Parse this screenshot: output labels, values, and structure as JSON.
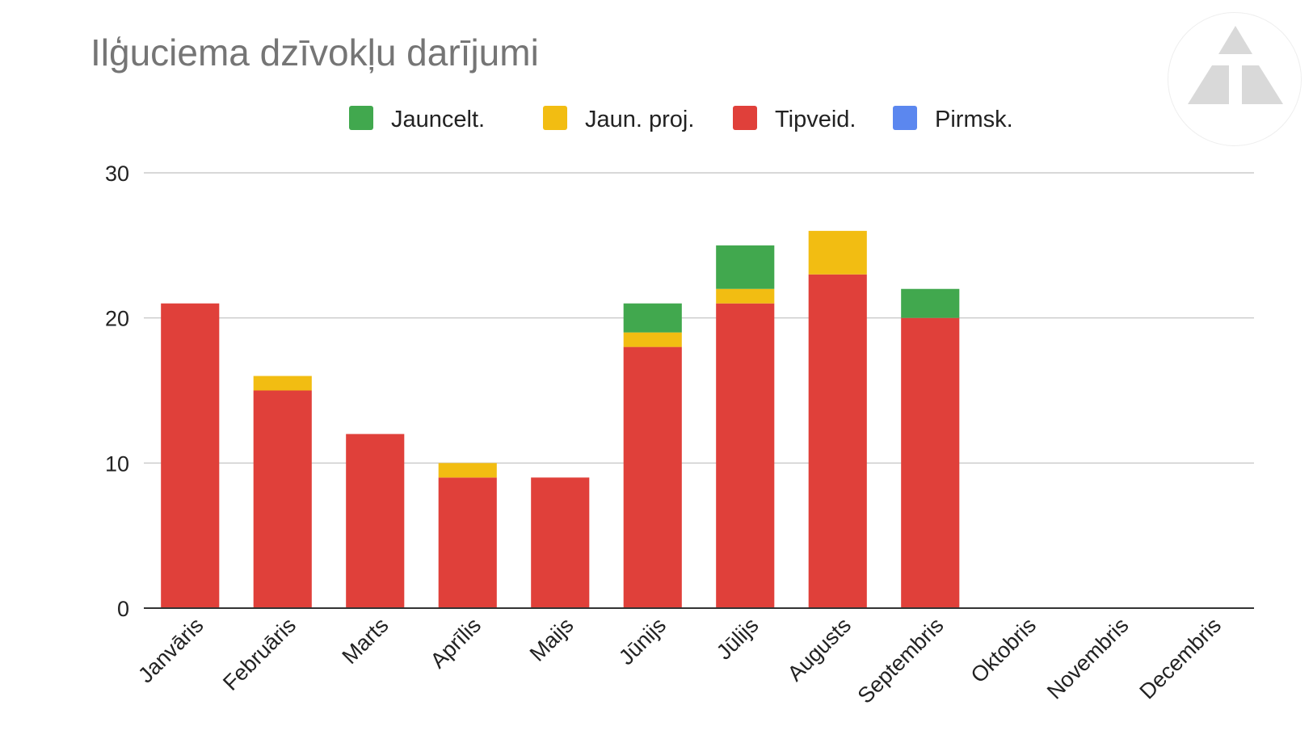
{
  "chart_data": {
    "type": "bar",
    "stacked": true,
    "title": "Ilģuciema dzīvokļu darījumi",
    "xlabel": "",
    "ylabel": "",
    "ylim": [
      0,
      30
    ],
    "yticks": [
      0,
      10,
      20,
      30
    ],
    "grid": true,
    "legend_position": "top",
    "categories": [
      "Janvāris",
      "Februāris",
      "Marts",
      "Aprīlis",
      "Maijs",
      "Jūnijs",
      "Jūlijs",
      "Augusts",
      "Septembris",
      "Oktobris",
      "Novembris",
      "Decembris"
    ],
    "series": [
      {
        "name": "Pirmsk.",
        "color": "#5b87ef",
        "values": [
          0,
          0,
          0,
          0,
          0,
          0,
          0,
          0,
          0,
          0,
          0,
          0
        ]
      },
      {
        "name": "Tipveid.",
        "color": "#e0403a",
        "values": [
          21,
          15,
          12,
          9,
          9,
          18,
          21,
          23,
          20,
          0,
          0,
          0
        ]
      },
      {
        "name": "Jaun. proj.",
        "color": "#f2bd12",
        "values": [
          0,
          1,
          0,
          1,
          0,
          1,
          1,
          3,
          0,
          0,
          0,
          0
        ]
      },
      {
        "name": "Jauncelt.",
        "color": "#41a84e",
        "values": [
          0,
          0,
          0,
          0,
          0,
          2,
          3,
          0,
          2,
          0,
          0,
          0
        ]
      }
    ],
    "legend_order": [
      "Jauncelt.",
      "Jaun. proj.",
      "Tipveid.",
      "Pirmsk."
    ]
  },
  "logo": {
    "icon": "triangle-logo-icon",
    "color": "#d9d9d9"
  }
}
